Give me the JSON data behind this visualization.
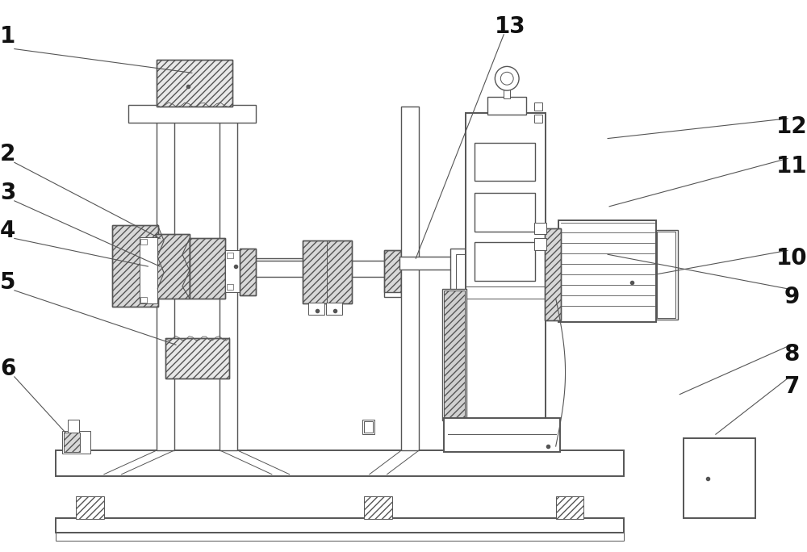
{
  "bg_color": "#ffffff",
  "line_color": "#555555",
  "label_color": "#111111",
  "fig_width": 10.0,
  "fig_height": 6.84,
  "dpi": 100
}
